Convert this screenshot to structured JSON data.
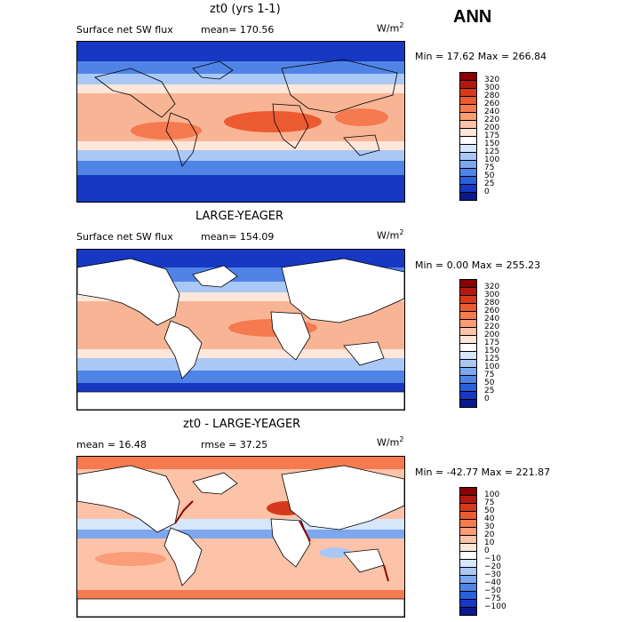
{
  "header": {
    "season": "ANN"
  },
  "panels": [
    {
      "title": "zt0 (yrs 1-1)",
      "variable": "Surface net SW flux",
      "stat": "mean= 170.56",
      "units": "W/m",
      "units_exp": "2",
      "minmax": "Min =  17.62 Max = 266.84",
      "colorbar": {
        "labels": [
          "320",
          "300",
          "280",
          "260",
          "240",
          "220",
          "200",
          "175",
          "150",
          "125",
          "100",
          "75",
          "50",
          "25",
          "0"
        ],
        "colors": [
          "#8b0000",
          "#b3190e",
          "#d63a1c",
          "#ec5a32",
          "#f57a50",
          "#fa9d78",
          "#fdc3a8",
          "#fde6da",
          "#ffffff",
          "#d6e6fb",
          "#aac8f5",
          "#7da7ee",
          "#5083e6",
          "#2b5fdc",
          "#1638c2",
          "#0a1a8a"
        ]
      }
    },
    {
      "title": "LARGE-YEAGER",
      "variable": "Surface net SW flux",
      "stat": "mean= 154.09",
      "units": "W/m",
      "units_exp": "2",
      "minmax": "Min =   0.00 Max = 255.23",
      "colorbar": {
        "labels": [
          "320",
          "300",
          "280",
          "260",
          "240",
          "220",
          "200",
          "175",
          "150",
          "125",
          "100",
          "75",
          "50",
          "25",
          "0"
        ],
        "colors": [
          "#8b0000",
          "#b3190e",
          "#d63a1c",
          "#ec5a32",
          "#f57a50",
          "#fa9d78",
          "#fdc3a8",
          "#fde6da",
          "#ffffff",
          "#d6e6fb",
          "#aac8f5",
          "#7da7ee",
          "#5083e6",
          "#2b5fdc",
          "#1638c2",
          "#0a1a8a"
        ]
      }
    },
    {
      "title": "zt0 - LARGE-YEAGER",
      "variable": "mean =  16.48",
      "stat": "rmse =  37.25",
      "units": "W/m",
      "units_exp": "2",
      "minmax": "Min = -42.77 Max = 221.87",
      "colorbar": {
        "labels": [
          "100",
          "75",
          "50",
          "40",
          "30",
          "20",
          "10",
          "0",
          "−10",
          "−20",
          "−30",
          "−40",
          "−50",
          "−75",
          "−100"
        ],
        "colors": [
          "#8b0000",
          "#b3190e",
          "#d63a1c",
          "#ec5a32",
          "#f57a50",
          "#fa9d78",
          "#fdc3a8",
          "#fde6da",
          "#ffffff",
          "#d6e6fb",
          "#aac8f5",
          "#7da7ee",
          "#5083e6",
          "#2b5fdc",
          "#1638c2",
          "#0a1a8a"
        ]
      }
    }
  ]
}
